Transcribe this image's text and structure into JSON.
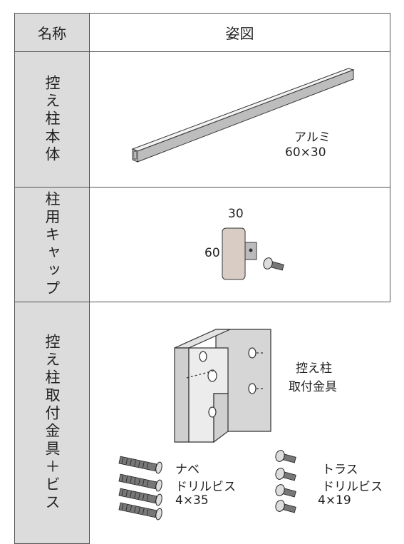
{
  "header": {
    "name": "名称",
    "figure": "姿図"
  },
  "rows": [
    {
      "name": "控え柱本体",
      "labels": [
        "アルミ",
        "60×30"
      ]
    },
    {
      "name": "柱用キャップ",
      "labels": [
        "30",
        "60"
      ]
    },
    {
      "name": "控え柱取付金具＋ビス",
      "labels": [
        "控え柱",
        "取付金具",
        "ナベ",
        "ドリルビス",
        "4×35",
        "トラス",
        "ドリルビス",
        "4×19"
      ]
    }
  ]
}
